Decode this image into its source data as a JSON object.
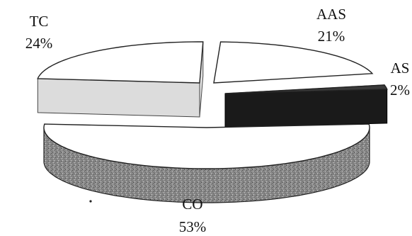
{
  "chart_data": {
    "type": "pie",
    "style": "3d-exploded",
    "title": "",
    "slices": [
      {
        "label": "CO",
        "value": 53,
        "value_label": "53%",
        "top_color": "#ffffff",
        "side_color": "#8c8c8c"
      },
      {
        "label": "TC",
        "value": 24,
        "value_label": "24%",
        "top_color": "#ffffff",
        "side_color": "#e2e2e2"
      },
      {
        "label": "AAS",
        "value": 21,
        "value_label": "21%",
        "top_color": "#ffffff",
        "side_color": "#7a7a7a"
      },
      {
        "label": "AS",
        "value": 2,
        "value_label": "2%",
        "top_color": "#3a3a3a",
        "side_color": "#111111"
      }
    ]
  }
}
